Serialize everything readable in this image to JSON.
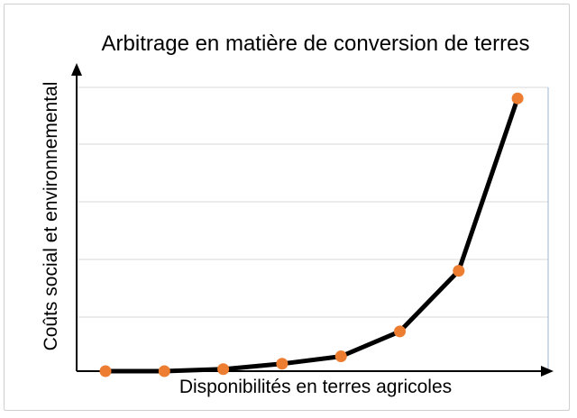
{
  "chart_data": {
    "type": "line",
    "title": "Arbitrage en matière de conversion de terres",
    "xlabel": "Disponibilités en terres agricoles",
    "ylabel": "Coûts social et environnemental",
    "x": [
      1,
      2,
      3,
      4,
      5,
      6,
      7,
      8
    ],
    "series": [
      {
        "values": [
          0,
          0,
          0.3,
          1.1,
          2.2,
          5.9,
          14.9,
          40.5
        ]
      }
    ],
    "ylim": [
      0,
      42
    ],
    "grid": true,
    "legend": "none",
    "tick_labels": false,
    "colors": {
      "line": "#000000",
      "marker": "#ed7d31",
      "grid": "#d9d9d9",
      "axis": "#000000"
    }
  }
}
